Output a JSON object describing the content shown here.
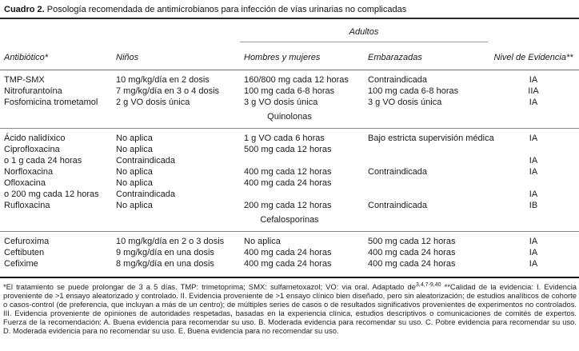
{
  "title": {
    "label": "Cuadro 2.",
    "text": " Posología recomendada de antimicrobianos para infección de vías urinarias no complicadas"
  },
  "table": {
    "group_header": "Adultos",
    "columns": [
      "Antibiótico*",
      "Niños",
      "Hombres y mujeres",
      "Embarazadas",
      "Nivel de Evidencia**"
    ],
    "sections": [
      {
        "name": "",
        "rows": [
          [
            "TMP-SMX",
            "10 mg/kg/día en 2 dosis",
            "160/800 mg cada 12 horas",
            "Contraindicada",
            "IA"
          ],
          [
            "Nitrofurantoína",
            "7 mg/kg/día en 3 o 4 dosis",
            "100 mg cada 6-8 horas",
            "100 mg cada 6-8 horas",
            "IIA"
          ],
          [
            "Fosfomicina trometamol",
            "2 g VO dosis única",
            "3 g VO dosis única",
            "3 g VO dosis única",
            "IA"
          ]
        ]
      },
      {
        "name": "Quinolonas",
        "rows": [
          [
            "Ácido nalidíxico",
            "No aplica",
            "1 g VO cada 6 horas",
            "Bajo estricta supervisión médica",
            "IA"
          ],
          [
            "Ciprofloxacina",
            "No aplica",
            "500 mg cada 12 horas",
            "",
            ""
          ],
          [
            "o 1 g cada 24 horas",
            "Contraindicada",
            "",
            "",
            "IA"
          ],
          [
            "Norfloxacina",
            "No aplica",
            "400 mg cada 12 horas",
            "Contraindicada",
            "IA"
          ],
          [
            "Ofloxacina",
            "No aplica",
            "400 mg cada 24 horas",
            "",
            ""
          ],
          [
            "o 200 mg cada 12 horas",
            "Contraindicada",
            "",
            "",
            "IA"
          ],
          [
            "Rufloxacina",
            "No aplica",
            "200 mg cada 12 horas",
            "Contraindicada",
            "IB"
          ]
        ]
      },
      {
        "name": "Cefalosporinas",
        "rows": [
          [
            "Cefuroxima",
            "10 mg/kg/día en 2 o 3 dosis",
            "No aplica",
            "500 mg cada 12 horas",
            "IA"
          ],
          [
            "Ceftibuten",
            "9 mg/kg/día en una dosis",
            "400 mg cada 24 horas",
            "400 mg cada 24 horas",
            "IA"
          ],
          [
            "Cefixime",
            "8 mg/kg/día en una dosis",
            "400 mg cada 24 horas",
            "400 mg cada 24 horas",
            "IA"
          ]
        ]
      }
    ]
  },
  "footnote": {
    "before_sup": "*El tratamiento se puede prolongar de 3 a 5 días. TMP: trimetoprima; SMX: sulfametoxazol; VO: via oral. Adaptado de",
    "sup": "3,4,7-9,40",
    "after_sup": " **Calidad de la evidencia: I. Evidencia proveniente de >1 ensayo aleatorizado y controlado. II. Evidencia proveniente de >1 ensayo clínico bien diseñado, pero sin aleatorización; de estudios analíticos de cohorte o casos-control (de preferencia, que incluyan a más de un centro); de múltiples series de casos o de resultados significativos provenientes de experimentos no controlados. III. Evidencia proveniente de opiniones de autoridades respetadas, basadas en la experiencia clínica, estudios descriptivos o comunicaciones de comités de expertos. Fuerza de la recomendación: A. Buena evidencia para recomendar su uso. B. Moderada evidencia para recomendar su uso. C. Pobre evidencia para recomendar su uso. D. Moderada evidencia para no recomendar su uso. E. Buena evidencia para no recomendar su uso."
  },
  "colors": {
    "rule_dark": "#2a2a2a",
    "rule_light": "#8a8a8a",
    "text": "#1a1a1a"
  }
}
